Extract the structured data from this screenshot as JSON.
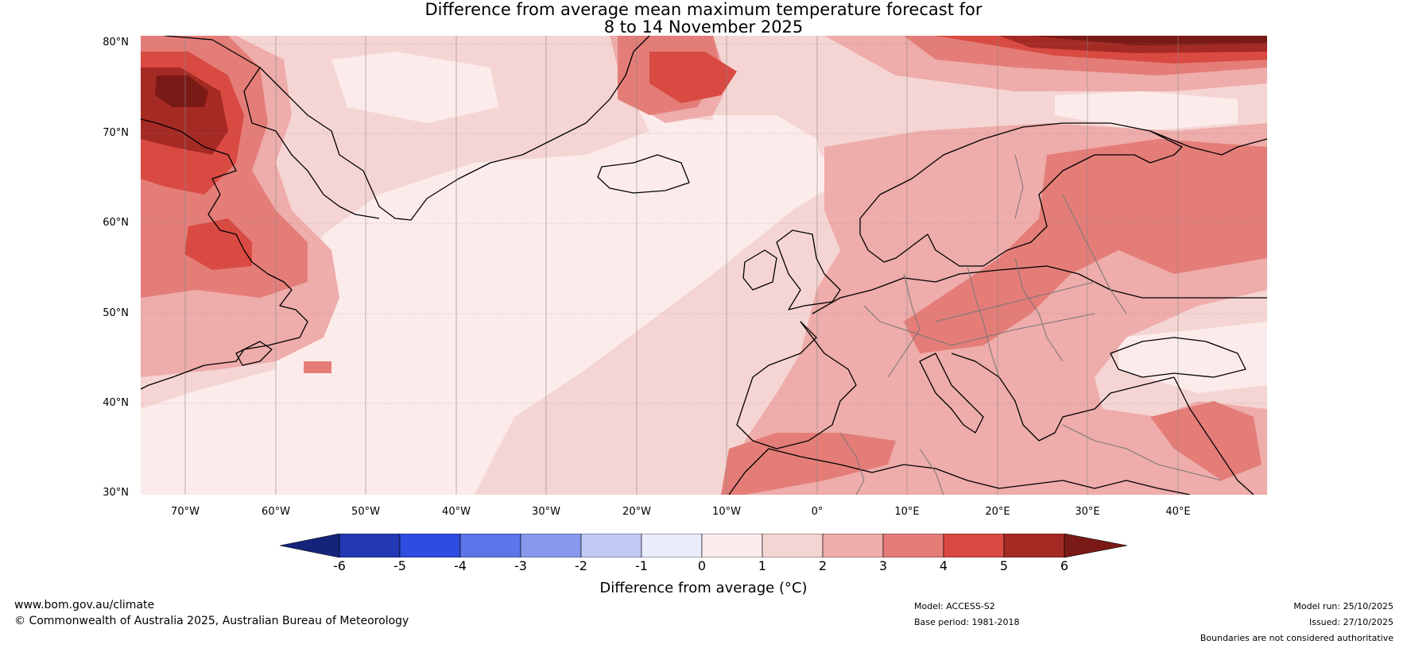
{
  "title": {
    "line1": "Difference from average mean maximum temperature forecast for",
    "line2": "8 to 14 November 2025"
  },
  "map": {
    "latitude_labels": [
      "80°N",
      "70°N",
      "60°N",
      "50°N",
      "40°N",
      "30°N"
    ],
    "longitude_labels": [
      "70°W",
      "60°W",
      "50°W",
      "40°W",
      "30°W",
      "20°W",
      "10°W",
      "0°",
      "10°E",
      "20°E",
      "30°E",
      "40°E"
    ],
    "colors": {
      "neg6": "#16237a",
      "neg5": "#2338b5",
      "neg4": "#2f4ce0",
      "neg3": "#5c75e8",
      "neg2": "#8699ec",
      "neg1": "#c0c9f4",
      "zero": "#e9ecfb",
      "p0_1": "#fbeceb",
      "p1_2": "#f5d5d3",
      "p2_3": "#eeacaa",
      "p3_4": "#e47d78",
      "p4_5": "#d94a42",
      "p5_6": "#a62a24",
      "p6": "#7a1a16"
    }
  },
  "colorbar": {
    "tick_labels": [
      "-6",
      "-5",
      "-4",
      "-3",
      "-2",
      "-1",
      "0",
      "1",
      "2",
      "3",
      "4",
      "5",
      "6"
    ],
    "label": "Difference from average (°C)"
  },
  "footer": {
    "website": "www.bom.gov.au/climate",
    "copyright": "© Commonwealth of Australia 2025, Australian Bureau of Meteorology",
    "model": "Model: ACCESS-S2",
    "base_period": "Base period: 1981-2018",
    "model_run": "Model run: 25/10/2025",
    "issued": "Issued: 27/10/2025",
    "disclaimer": "Boundaries are not considered authoritative"
  }
}
